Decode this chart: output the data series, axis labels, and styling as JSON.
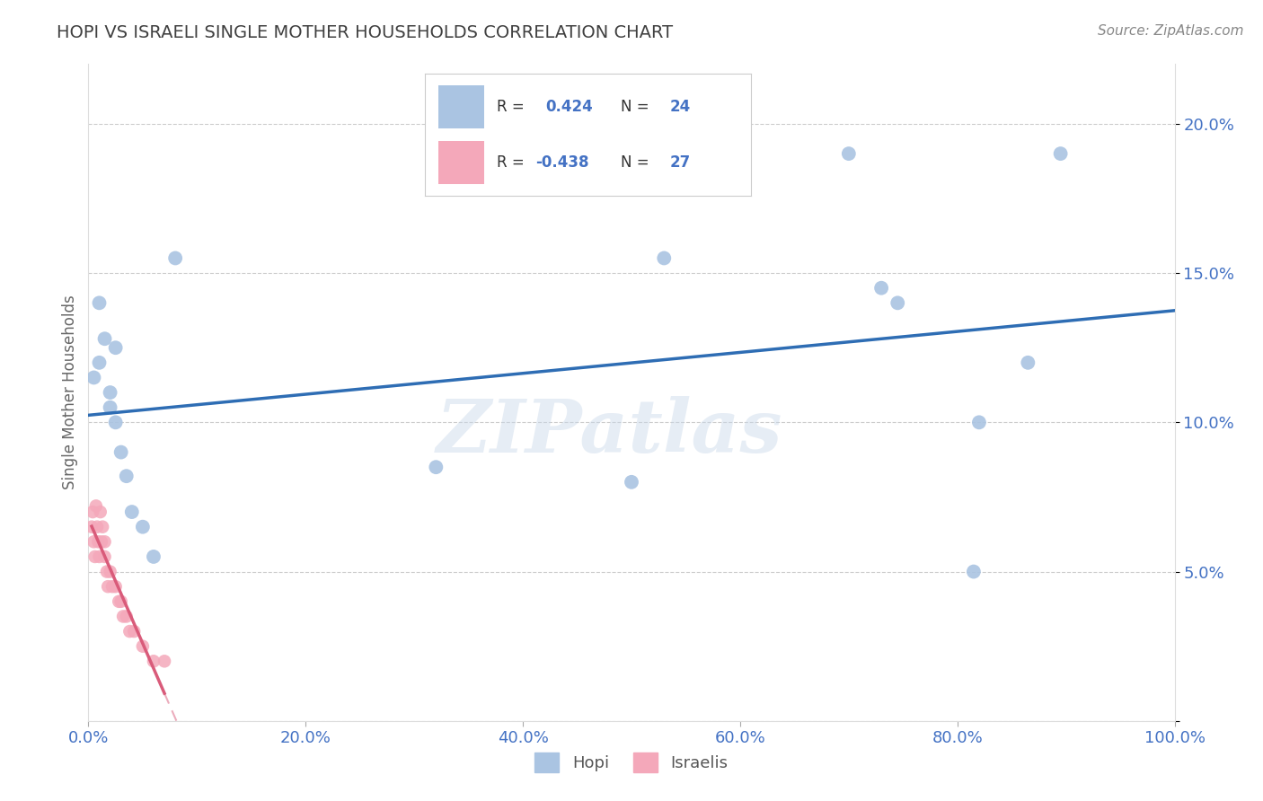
{
  "title": "HOPI VS ISRAELI SINGLE MOTHER HOUSEHOLDS CORRELATION CHART",
  "source": "Source: ZipAtlas.com",
  "ylabel": "Single Mother Households",
  "xlim": [
    0.0,
    1.0
  ],
  "ylim": [
    0.0,
    0.22
  ],
  "ytick_vals": [
    0.0,
    0.05,
    0.1,
    0.15,
    0.2
  ],
  "ytick_labels": [
    "",
    "5.0%",
    "10.0%",
    "15.0%",
    "20.0%"
  ],
  "xtick_vals": [
    0.0,
    0.2,
    0.4,
    0.6,
    0.8,
    1.0
  ],
  "xtick_labels": [
    "0.0%",
    "20.0%",
    "40.0%",
    "60.0%",
    "80.0%",
    "100.0%"
  ],
  "hopi_R": "0.424",
  "hopi_N": "24",
  "israelis_R": "-0.438",
  "israelis_N": "27",
  "hopi_color": "#aac4e2",
  "israelis_color": "#f4a8ba",
  "hopi_line_color": "#2e6db4",
  "israelis_line_color": "#d95b7a",
  "watermark": "ZIPatlas",
  "hopi_points_x": [
    0.005,
    0.01,
    0.01,
    0.015,
    0.02,
    0.02,
    0.025,
    0.025,
    0.03,
    0.035,
    0.04,
    0.05,
    0.06,
    0.08,
    0.32,
    0.5,
    0.53,
    0.7,
    0.73,
    0.745,
    0.82,
    0.815,
    0.865,
    0.895
  ],
  "hopi_points_y": [
    0.115,
    0.14,
    0.12,
    0.128,
    0.105,
    0.11,
    0.1,
    0.125,
    0.09,
    0.082,
    0.07,
    0.065,
    0.055,
    0.155,
    0.085,
    0.08,
    0.155,
    0.19,
    0.145,
    0.14,
    0.1,
    0.05,
    0.12,
    0.19
  ],
  "israelis_points_x": [
    0.003,
    0.004,
    0.005,
    0.006,
    0.007,
    0.008,
    0.009,
    0.01,
    0.011,
    0.012,
    0.013,
    0.015,
    0.015,
    0.017,
    0.018,
    0.02,
    0.022,
    0.025,
    0.028,
    0.03,
    0.032,
    0.035,
    0.038,
    0.042,
    0.05,
    0.06,
    0.07
  ],
  "israelis_points_y": [
    0.065,
    0.07,
    0.06,
    0.055,
    0.072,
    0.065,
    0.06,
    0.055,
    0.07,
    0.06,
    0.065,
    0.06,
    0.055,
    0.05,
    0.045,
    0.05,
    0.045,
    0.045,
    0.04,
    0.04,
    0.035,
    0.035,
    0.03,
    0.03,
    0.025,
    0.02,
    0.02
  ],
  "background_color": "#ffffff",
  "grid_color": "#cccccc",
  "tick_color": "#4472c4",
  "title_color": "#404040",
  "source_color": "#888888",
  "ylabel_color": "#666666"
}
